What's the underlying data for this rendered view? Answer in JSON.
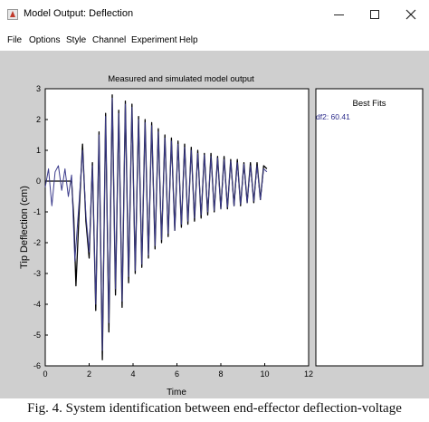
{
  "window": {
    "title": "Model Output: Deflection",
    "icon": "matlab-app-icon",
    "controls": [
      "minimize",
      "maximize",
      "close"
    ]
  },
  "menu": [
    "File",
    "Options",
    "Style",
    "Channel",
    "Experiment",
    "Help"
  ],
  "chart_data": {
    "type": "line",
    "title": "Measured and simulated model output",
    "xlabel": "Time",
    "ylabel": "Tip Deflection (cm)",
    "xlim": [
      0,
      12
    ],
    "ylim": [
      -6,
      3
    ],
    "xticks": [
      "0",
      "2",
      "4",
      "6",
      "8",
      "10",
      "12"
    ],
    "yticks": [
      "3",
      "2",
      "1",
      "0",
      "-1",
      "-2",
      "-3",
      "-4",
      "-5",
      "-6"
    ],
    "grid": false,
    "series": [
      {
        "color": "#000000",
        "x": [
          0.0,
          0.2,
          0.4,
          0.6,
          0.8,
          1.0,
          1.2,
          1.3,
          1.4,
          1.55,
          1.7,
          1.85,
          2.0,
          2.15,
          2.3,
          2.45,
          2.6,
          2.75,
          2.9,
          3.05,
          3.2,
          3.35,
          3.5,
          3.65,
          3.8,
          3.95,
          4.1,
          4.25,
          4.4,
          4.55,
          4.7,
          4.85,
          5.0,
          5.15,
          5.3,
          5.45,
          5.6,
          5.75,
          5.9,
          6.05,
          6.2,
          6.35,
          6.5,
          6.65,
          6.8,
          6.95,
          7.1,
          7.25,
          7.4,
          7.55,
          7.7,
          7.85,
          8.0,
          8.15,
          8.3,
          8.45,
          8.6,
          8.75,
          8.9,
          9.05,
          9.2,
          9.35,
          9.5,
          9.65,
          9.8,
          9.95,
          10.1
        ],
        "y": [
          0.0,
          0.0,
          0.0,
          0.0,
          0.0,
          0.0,
          0.0,
          -1.2,
          -3.4,
          -0.9,
          1.2,
          -1.3,
          -2.5,
          0.6,
          -4.2,
          1.6,
          -5.8,
          2.2,
          -4.9,
          2.8,
          -3.7,
          2.3,
          -4.1,
          2.6,
          -3.3,
          2.5,
          -3.0,
          2.1,
          -2.8,
          2.0,
          -2.5,
          1.9,
          -2.2,
          1.7,
          -2.0,
          1.5,
          -1.8,
          1.4,
          -1.6,
          1.3,
          -1.5,
          1.2,
          -1.4,
          1.1,
          -1.3,
          1.0,
          -1.2,
          0.9,
          -1.1,
          0.9,
          -1.0,
          0.8,
          -0.9,
          0.8,
          -0.9,
          0.7,
          -0.8,
          0.7,
          -0.8,
          0.6,
          -0.7,
          0.6,
          -0.7,
          0.6,
          -0.6,
          0.5,
          0.4
        ]
      },
      {
        "color": "#3c3c8c",
        "x": [
          0.0,
          0.15,
          0.3,
          0.45,
          0.6,
          0.75,
          0.9,
          1.05,
          1.2,
          1.35,
          1.55,
          1.7,
          1.85,
          2.0,
          2.15,
          2.3,
          2.45,
          2.6,
          2.75,
          2.9,
          3.05,
          3.2,
          3.35,
          3.5,
          3.65,
          3.8,
          3.95,
          4.1,
          4.25,
          4.4,
          4.55,
          4.7,
          4.85,
          5.0,
          5.15,
          5.3,
          5.45,
          5.6,
          5.75,
          5.9,
          6.05,
          6.2,
          6.35,
          6.5,
          6.65,
          6.8,
          6.95,
          7.1,
          7.25,
          7.4,
          7.55,
          7.7,
          7.85,
          8.0,
          8.15,
          8.3,
          8.45,
          8.6,
          8.75,
          8.9,
          9.05,
          9.2,
          9.35,
          9.5,
          9.65,
          9.8,
          9.95,
          10.1
        ],
        "y": [
          -0.2,
          0.4,
          -0.8,
          0.3,
          0.5,
          -0.3,
          0.4,
          -0.5,
          0.2,
          -2.6,
          -0.6,
          1.0,
          -1.1,
          -2.3,
          0.5,
          -4.0,
          1.5,
          -5.5,
          2.1,
          -4.6,
          2.7,
          -3.5,
          2.2,
          -3.9,
          2.5,
          -3.1,
          2.4,
          -2.9,
          2.0,
          -2.7,
          1.9,
          -2.4,
          1.8,
          -2.1,
          1.6,
          -1.9,
          1.4,
          -1.7,
          1.3,
          -1.6,
          1.2,
          -1.4,
          1.1,
          -1.3,
          1.0,
          -1.2,
          0.9,
          -1.1,
          0.85,
          -1.0,
          0.8,
          -0.95,
          0.75,
          -0.9,
          0.7,
          -0.85,
          0.65,
          -0.8,
          0.6,
          -0.75,
          0.55,
          -0.7,
          0.5,
          -0.65,
          0.5,
          -0.6,
          0.4,
          0.3
        ]
      }
    ],
    "side_panel": {
      "title": "Best Fits",
      "entries": [
        "df2: 60.41"
      ]
    }
  },
  "caption": "Fig. 4. System identification between end-effector deflection-voltage"
}
